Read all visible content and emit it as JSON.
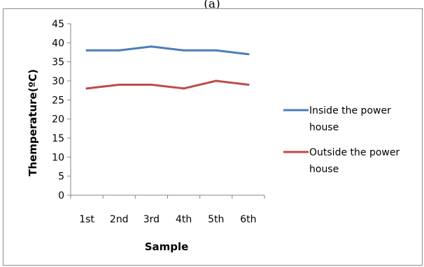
{
  "figure_label": "(a)",
  "chart_data": {
    "type": "line",
    "categories": [
      "1st",
      "2nd",
      "3rd",
      "4th",
      "5th",
      "6th"
    ],
    "series": [
      {
        "name": "Inside the power house",
        "name_lines": [
          "Inside the power",
          "house"
        ],
        "color": "#4a7ebb",
        "values": [
          38,
          38,
          39,
          38,
          38,
          37
        ]
      },
      {
        "name": "Outside the power house",
        "name_lines": [
          "Outside the power",
          "house"
        ],
        "color": "#be4b48",
        "values": [
          28,
          29,
          29,
          28,
          30,
          29
        ]
      }
    ],
    "title": "",
    "xlabel": "Sample",
    "ylabel": "Themperature(ºC)",
    "ylim": [
      0,
      45
    ],
    "yticks": [
      0,
      5,
      10,
      15,
      20,
      25,
      30,
      35,
      40,
      45
    ],
    "grid": false,
    "legend_position": "right"
  }
}
